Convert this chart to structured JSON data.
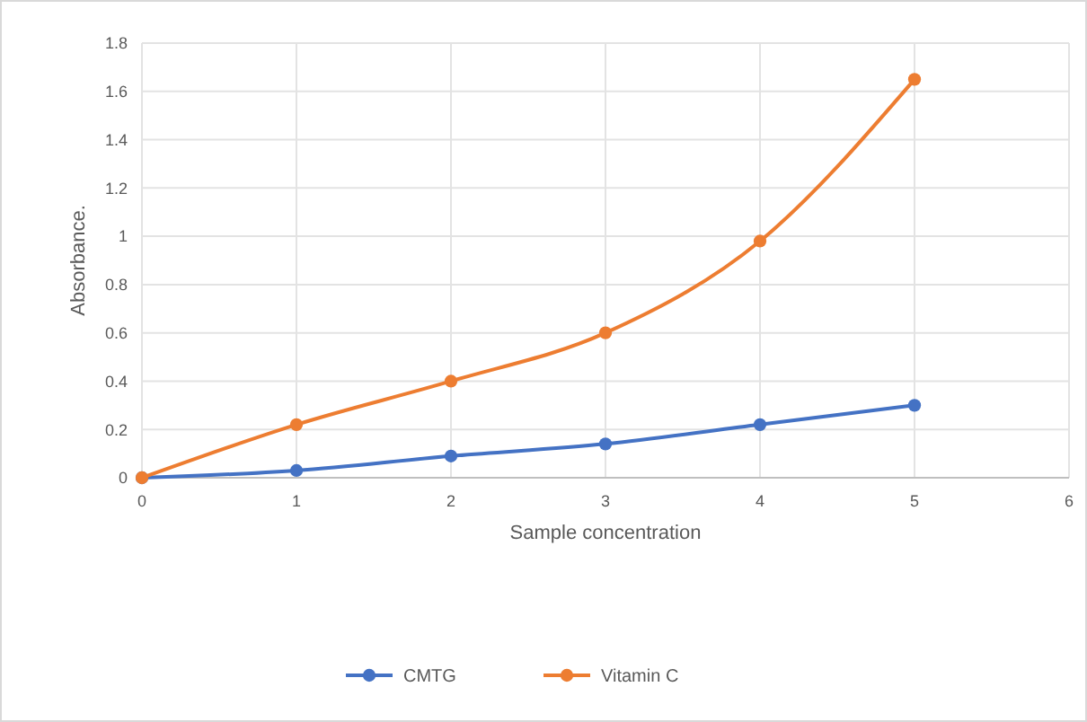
{
  "chart_data": {
    "type": "line",
    "xlabel": "Sample concentration",
    "ylabel": "Absorbance.",
    "x": [
      0,
      1,
      2,
      3,
      4,
      5
    ],
    "series": [
      {
        "name": "CMTG",
        "color": "#4472c4",
        "values": [
          0,
          0.03,
          0.09,
          0.14,
          0.22,
          0.3
        ]
      },
      {
        "name": "Vitamin C",
        "color": "#ed7d31",
        "values": [
          0,
          0.22,
          0.4,
          0.6,
          0.98,
          1.65
        ]
      }
    ],
    "xlim": [
      0,
      6
    ],
    "xticks": [
      0,
      1,
      2,
      3,
      4,
      5,
      6
    ],
    "ylim": [
      0,
      1.8
    ],
    "yticks": [
      0,
      0.2,
      0.4,
      0.6,
      0.8,
      1,
      1.2,
      1.4,
      1.6,
      1.8
    ],
    "grid": true,
    "legend": "bottom",
    "marker": "circle",
    "line_style": "solid"
  }
}
